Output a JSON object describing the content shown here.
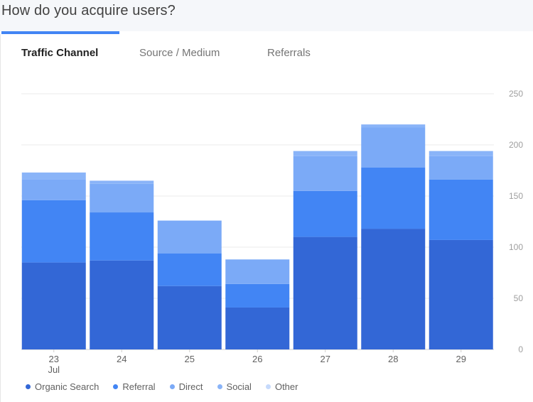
{
  "header": {
    "title": "How do you acquire users?"
  },
  "tabs": [
    {
      "label": "Traffic Channel",
      "active": true
    },
    {
      "label": "Source / Medium",
      "active": false
    },
    {
      "label": "Referrals",
      "active": false
    }
  ],
  "colors": {
    "header_bg": "#f5f7fa",
    "accent": "#4285f4",
    "organic_search": "#3367d6",
    "referral": "#4285f4",
    "direct": "#7baaf7",
    "social": "#8ab4f8",
    "other": "#c6dafc"
  },
  "chart_data": {
    "type": "bar",
    "stacked": true,
    "categories": [
      "23",
      "24",
      "25",
      "26",
      "27",
      "28",
      "29"
    ],
    "category_sublabels": [
      "Jul",
      "",
      "",
      "",
      "",
      "",
      ""
    ],
    "series": [
      {
        "name": "Organic Search",
        "color": "#3367d6",
        "values": [
          85,
          87,
          62,
          41,
          110,
          118,
          107
        ]
      },
      {
        "name": "Referral",
        "color": "#4285f4",
        "values": [
          61,
          47,
          32,
          23,
          45,
          60,
          59
        ]
      },
      {
        "name": "Direct",
        "color": "#7baaf7",
        "values": [
          20,
          28,
          32,
          24,
          34,
          39,
          23
        ]
      },
      {
        "name": "Social",
        "color": "#8ab4f8",
        "values": [
          7,
          3,
          0,
          0,
          5,
          3,
          5
        ]
      },
      {
        "name": "Other",
        "color": "#c6dafc",
        "values": [
          0,
          0,
          0,
          0,
          0,
          0,
          0
        ]
      }
    ],
    "yticks": [
      0,
      50,
      100,
      150,
      200,
      250
    ],
    "ylim": [
      0,
      250
    ],
    "y_axis_position": "right",
    "grid": true,
    "legend_position": "bottom-left",
    "title": "",
    "xlabel": "",
    "ylabel": ""
  }
}
